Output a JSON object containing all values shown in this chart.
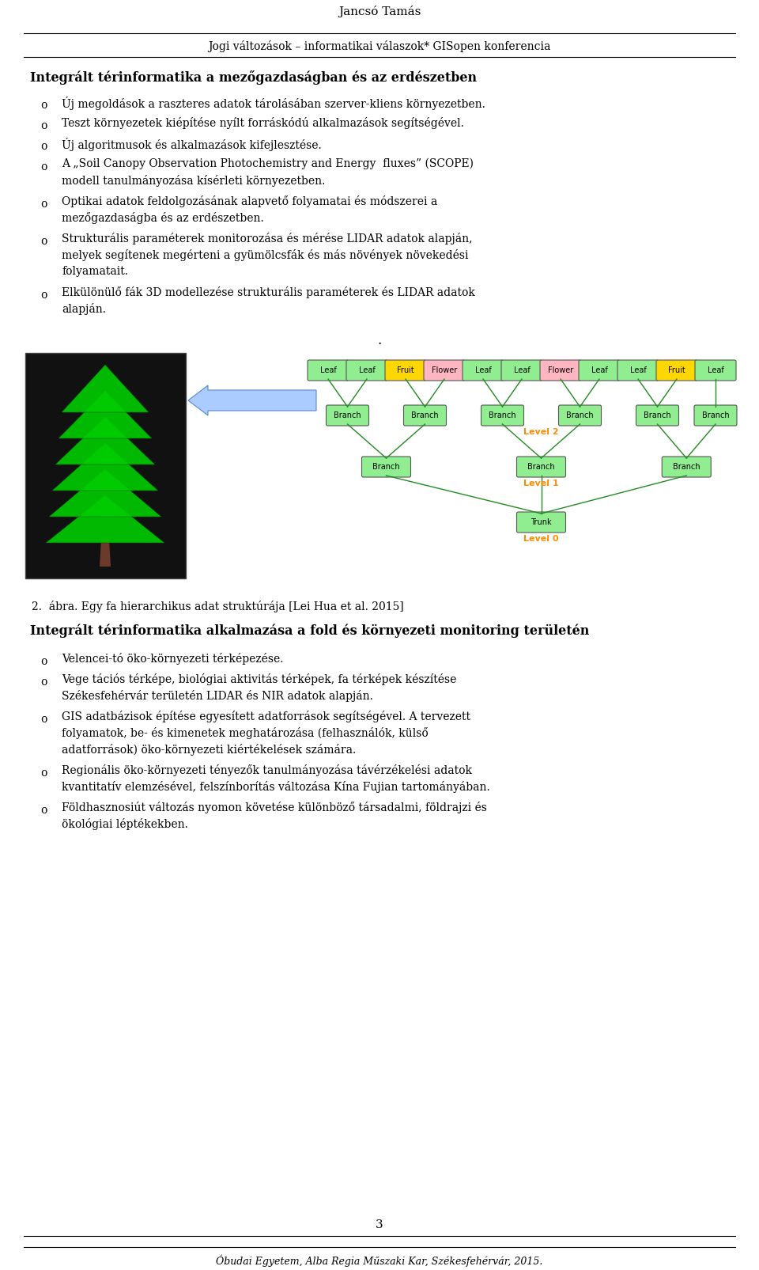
{
  "header_name": "Jancsó Tamás",
  "header_subtitle": "Jogi változások – informatikai válaszok* GISopen konferencia",
  "section1_title": "Integrált térinformatika a mezőgazdaságban és az erdészetben",
  "bullets1": [
    [
      "Új megoldások a raszteres adatok tárolásában szerver-kliens környezetben."
    ],
    [
      "Teszt környezetek kiépítése nyílt forráskódú alkalmazások segítségével."
    ],
    [
      "Új algoritmusok és alkalmazások kifejlesztése."
    ],
    [
      "A „Soil Canopy Observation Photochemistry and Energy  fluxes” (SCOPE)",
      "modell tanulmányozása kísérleti környezetben."
    ],
    [
      "Optikai adatok feldolgozásának alapvető folyamatai és módszerei a",
      "mezőgazdaságba és az erdészetben."
    ],
    [
      "Strukturális paraméterek monitorozása és mérése LIDAR adatok alapján,",
      "melyek segítenek megérteni a gyümölcsfák és más növények növekedési",
      "folyamatait."
    ],
    [
      "Elkülönülő fák 3D modellezése strukturális paraméterek és LIDAR adatok",
      "alapján."
    ]
  ],
  "figure_caption": "2.  ábra. Egy fa hierarchikus adat struktúrája [Lei Hua et al. 2015]",
  "section2_title": "Integrált térinformatika alkalmazása a fold és környezeti monitoring területén",
  "bullets2": [
    [
      "Velencei-tó öko-környezeti térképezése."
    ],
    [
      "Vege tációs térképe, biológiai aktivitás térképek, fa térképek készítése",
      "Székesfehérvár területén LIDAR és NIR adatok alapján."
    ],
    [
      "GIS adatbázisok építése egyesített adatforrások segítségével. A tervezett",
      "folyamatok, be- és kimenetek meghatározása (felhasználók, külső",
      "adatforrások) öko-környezeti kiértékelések számára."
    ],
    [
      "Regionális öko-környezeti tényezők tanulmányozása távérzékelési adatok",
      "kvantitatív elemzésével, felszínborítás változása Kína Fujian tartományában."
    ],
    [
      "Földhasznosiút változás nyomon követése különböző társadalmi, földrajzi és",
      "ökológiai léptékekben."
    ]
  ],
  "page_number": "3",
  "footer": "Óbudai Egyetem, Alba Regia Műszaki Kar, Székesfehérvár, 2015.",
  "bg_color": "#ffffff",
  "text_color": "#000000",
  "title_color": "#000000",
  "bullet_marker": "o",
  "tree_nodes_row0": [
    "Leaf",
    "Leaf",
    "Fruit",
    "Flower",
    "Leaf",
    "Leaf",
    "Flower",
    "Leaf",
    "Leaf",
    "Fruit",
    "Leaf"
  ],
  "tree_nodes_row1": [
    "Branch",
    "Branch",
    "Branch",
    "Branch",
    "Branch",
    "Branch"
  ],
  "tree_nodes_row2": [
    "Branch",
    "Branch",
    "Branch"
  ],
  "tree_node_trunk": "Trunk",
  "level_labels": [
    "Level 2",
    "Level 1",
    "Level 0"
  ],
  "leaf_color": "#90EE90",
  "fruit_color": "#FFD700",
  "flower_color": "#FFB6C1",
  "branch_color": "#90EE90",
  "trunk_color": "#90EE90",
  "level_label_color": "#FF8C00"
}
